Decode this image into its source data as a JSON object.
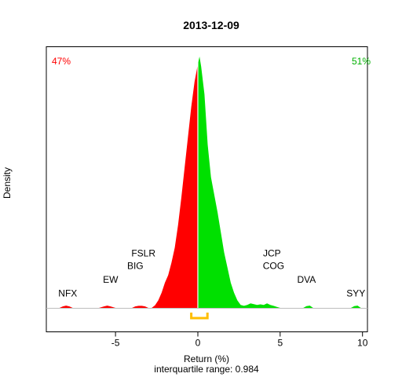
{
  "chart_data": {
    "type": "area",
    "title": "2013-12-09",
    "xlabel": "Return (%)",
    "ylabel": "Density",
    "subtitle": "interquartile range: 0.984",
    "xlim": [
      -9.2,
      10.3
    ],
    "ylim": [
      0,
      1.0
    ],
    "x_ticks": [
      -5,
      0,
      5,
      10
    ],
    "x_tick_labels": [
      "-5",
      "0",
      "5",
      "10"
    ],
    "neg_share": "47%",
    "pos_share": "51%",
    "colors": {
      "negative": "#ff0000",
      "positive": "#00e000",
      "iqr": "#ffbe00",
      "baseline": "#bebebe"
    },
    "iqr": [
      -0.4,
      0.584
    ],
    "density": {
      "x": [
        -8.4,
        -8.2,
        -8.0,
        -7.8,
        -7.6,
        -6.0,
        -5.7,
        -5.5,
        -5.3,
        -5.0,
        -4.0,
        -3.8,
        -3.6,
        -3.4,
        -3.2,
        -3.0,
        -2.8,
        -2.6,
        -2.4,
        -2.2,
        -2.0,
        -1.8,
        -1.6,
        -1.4,
        -1.2,
        -1.0,
        -0.8,
        -0.6,
        -0.4,
        -0.2,
        0.0,
        0.1,
        0.2,
        0.4,
        0.6,
        0.8,
        1.0,
        1.2,
        1.4,
        1.6,
        1.8,
        2.0,
        2.2,
        2.4,
        2.6,
        2.8,
        3.0,
        3.2,
        3.4,
        3.6,
        3.8,
        4.0,
        4.2,
        4.4,
        4.6,
        4.8,
        5.0,
        6.4,
        6.6,
        6.8,
        7.0,
        9.3,
        9.5,
        9.7,
        9.9
      ],
      "y": [
        0,
        0.006,
        0.009,
        0.006,
        0,
        0,
        0.006,
        0.009,
        0.006,
        0,
        0,
        0.006,
        0.008,
        0.008,
        0.006,
        0,
        0,
        0.01,
        0.03,
        0.06,
        0.1,
        0.13,
        0.18,
        0.24,
        0.33,
        0.44,
        0.56,
        0.68,
        0.8,
        0.9,
        0.97,
        1.0,
        0.96,
        0.85,
        0.65,
        0.52,
        0.45,
        0.38,
        0.3,
        0.22,
        0.16,
        0.1,
        0.06,
        0.03,
        0.012,
        0.008,
        0.012,
        0.018,
        0.015,
        0.012,
        0.014,
        0.012,
        0.018,
        0.012,
        0.008,
        0.004,
        0,
        0,
        0.007,
        0.009,
        0,
        0,
        0.007,
        0.009,
        0
      ]
    },
    "annotations": [
      {
        "label": "NFX",
        "x": -7.9,
        "y": 0.045
      },
      {
        "label": "EW",
        "x": -5.3,
        "y": 0.1
      },
      {
        "label": "FSLR",
        "x": -3.3,
        "y": 0.205
      },
      {
        "label": "BIG",
        "x": -3.8,
        "y": 0.155
      },
      {
        "label": "JCP",
        "x": 4.5,
        "y": 0.205
      },
      {
        "label": "COG",
        "x": 4.6,
        "y": 0.155
      },
      {
        "label": "DVA",
        "x": 6.6,
        "y": 0.1
      },
      {
        "label": "SYY",
        "x": 9.6,
        "y": 0.045
      }
    ]
  }
}
